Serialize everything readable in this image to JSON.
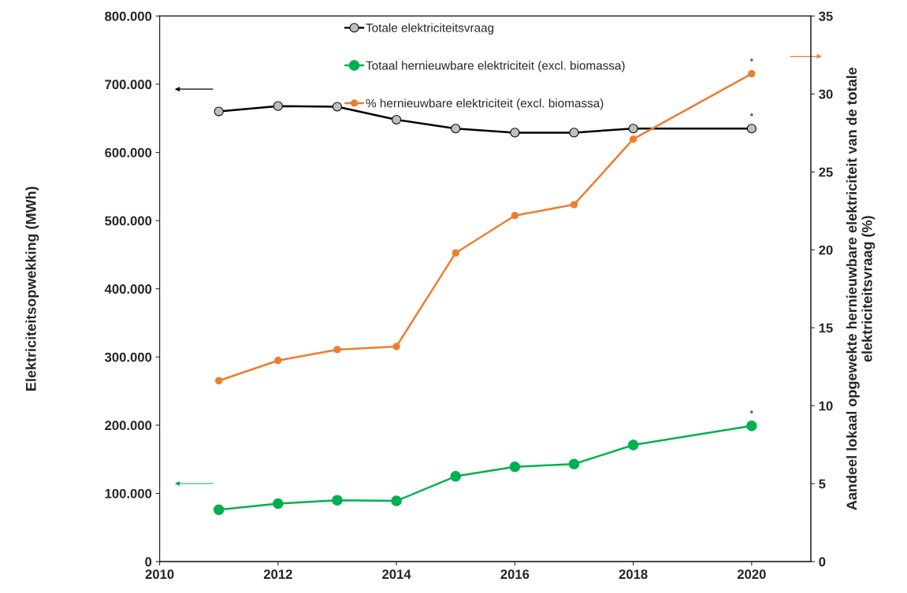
{
  "chart_data": {
    "type": "line",
    "x": [
      2011,
      2012,
      2013,
      2014,
      2015,
      2016,
      2017,
      2018,
      2020
    ],
    "series": [
      {
        "name": "Totale elektriciteitsvraag",
        "color": "#000000",
        "values": [
          660000,
          668000,
          667000,
          648000,
          635000,
          629000,
          629000,
          635000,
          635000
        ],
        "value_labels": [
          null,
          null,
          null,
          null,
          null,
          null,
          null,
          null,
          "*"
        ]
      },
      {
        "name": "Totaal hernieuwbare elektriciteit (excl. biomassa)",
        "color": "#00b050",
        "values": [
          76000,
          85000,
          90000,
          89000,
          125000,
          139000,
          143000,
          171000,
          199000
        ],
        "value_labels": [
          null,
          null,
          null,
          null,
          null,
          null,
          null,
          null,
          "*"
        ]
      },
      {
        "name": "% hernieuwbare elektriciteit (excl. biomassa)",
        "color": "#ed7d31",
        "axis": "y2",
        "values": [
          11.6,
          12.9,
          13.6,
          13.8,
          19.8,
          22.2,
          22.9,
          27.1,
          31.3
        ],
        "value_labels": [
          null,
          null,
          null,
          null,
          null,
          null,
          null,
          null,
          "*"
        ]
      }
    ],
    "ylabel": "Elektriciteitsopwekking (MWh)",
    "y2label": "Aandeel lokaal opgewekte hernieuwbare elektriciteit van de totale\nelektriciteitsvraag (%)",
    "xlim": [
      2010,
      2021
    ],
    "xticks": [
      2010,
      2012,
      2014,
      2016,
      2018,
      2020
    ],
    "ylim": [
      0,
      800000
    ],
    "yticks": [
      {
        "value": 0,
        "label": "0"
      },
      {
        "value": 100000,
        "label": "100.000"
      },
      {
        "value": 200000,
        "label": "200.000"
      },
      {
        "value": 300000,
        "label": "300.000"
      },
      {
        "value": 400000,
        "label": "400.000"
      },
      {
        "value": 500000,
        "label": "500.000"
      },
      {
        "value": 600000,
        "label": "600.000"
      },
      {
        "value": 700000,
        "label": "700.000"
      },
      {
        "value": 800000,
        "label": "800.000"
      }
    ],
    "y2lim": [
      0,
      35
    ],
    "y2ticks": [
      0,
      5,
      10,
      15,
      20,
      25,
      30,
      35
    ],
    "marker": "circle",
    "line_style": "solid",
    "grid": false,
    "legend": "top"
  }
}
